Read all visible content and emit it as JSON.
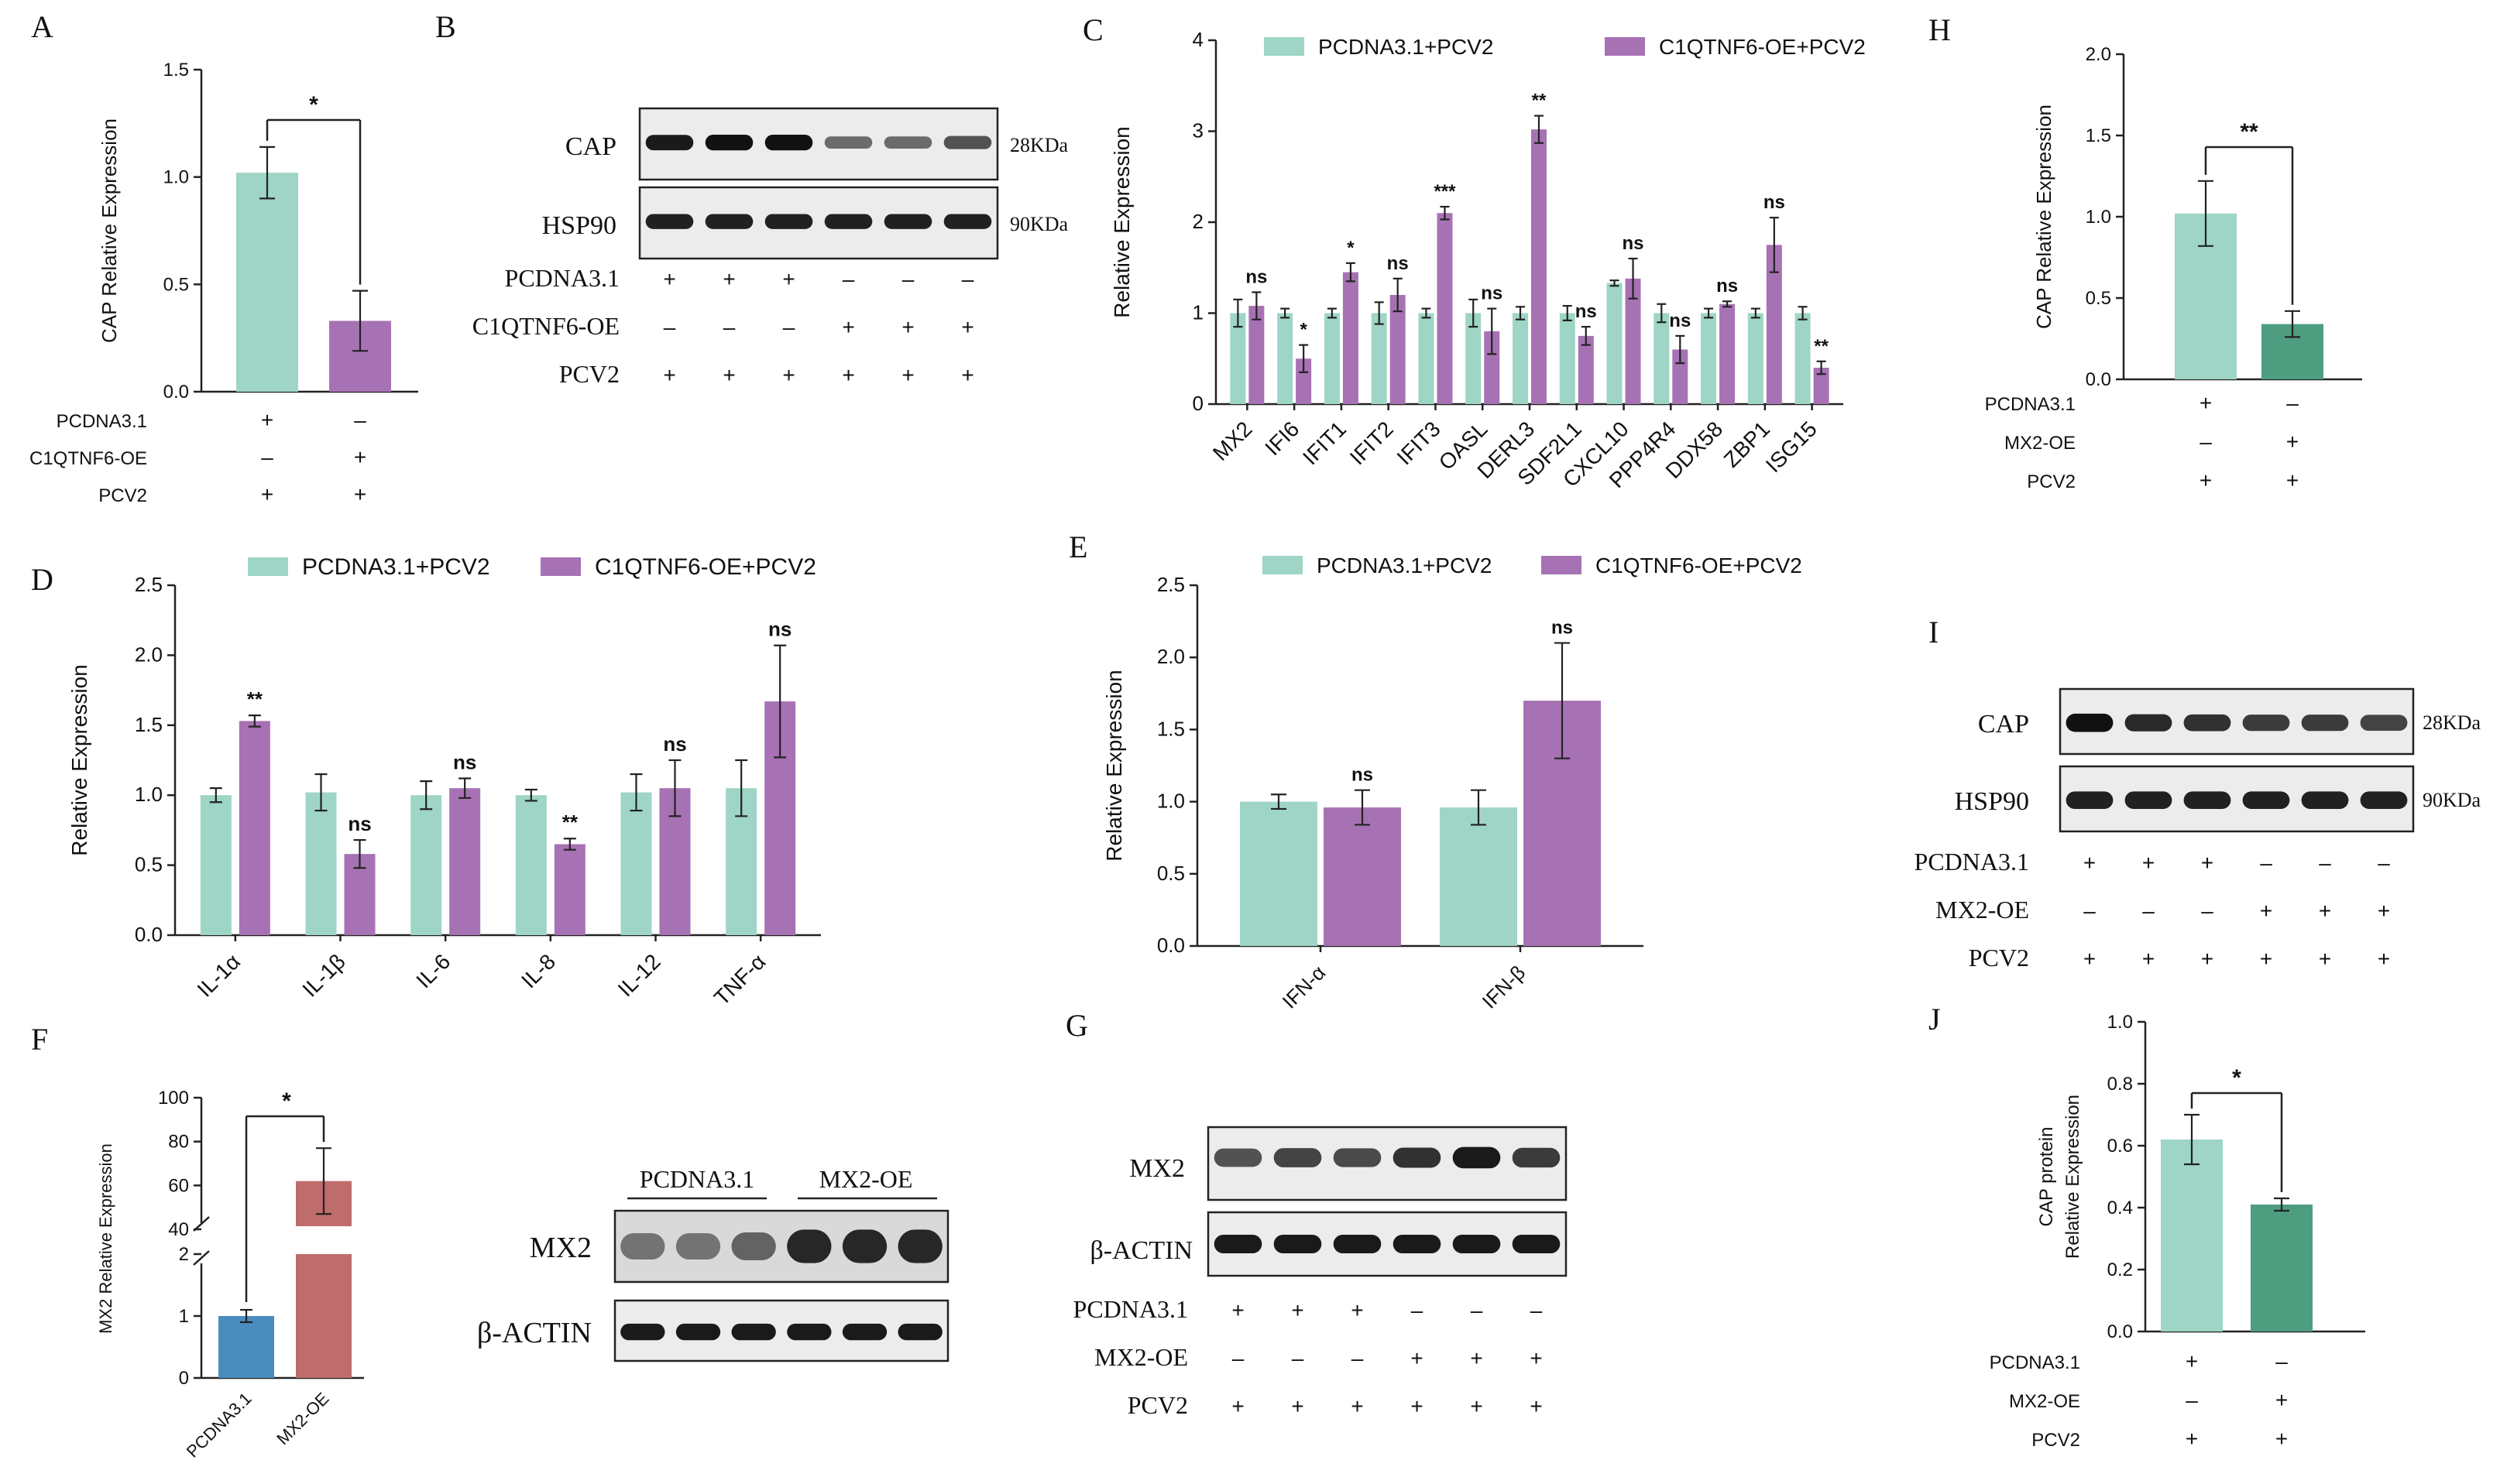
{
  "colors": {
    "teal": "#9ed5c6",
    "purple": "#a772b3",
    "green_dark": "#4f9d80",
    "blue": "#4b8cbf",
    "red": "#bf6c6c",
    "axis": "#222222",
    "band": "#111111"
  },
  "treatment_signs": {
    "plus": "+",
    "minus": "–"
  },
  "panel_letters": {
    "A": "A",
    "B": "B",
    "C": "C",
    "D": "D",
    "E": "E",
    "F": "F",
    "G": "G",
    "H": "H",
    "I": "I",
    "J": "J"
  },
  "chart_data": [
    {
      "panel": "A",
      "type": "bar",
      "ylabel": "CAP Relative Expression",
      "ylim": [
        0,
        1.5
      ],
      "yticks": [
        "0.0",
        "0.5",
        "1.0",
        "1.5"
      ],
      "groups": [
        "PCDNA3.1",
        "C1QTNF6-OE"
      ],
      "values": [
        1.02,
        0.33
      ],
      "errors": [
        0.12,
        0.14
      ],
      "significance": "*",
      "treatments": [
        {
          "label": "PCDNA3.1",
          "signs": [
            "+",
            "–"
          ]
        },
        {
          "label": "C1QTNF6-OE",
          "signs": [
            "–",
            "+"
          ]
        },
        {
          "label": "PCV2",
          "signs": [
            "+",
            "+"
          ]
        }
      ]
    },
    {
      "panel": "C",
      "type": "bar",
      "ylabel": "Relative Expression",
      "ylim": [
        0,
        4
      ],
      "yticks": [
        "0",
        "1",
        "2",
        "3",
        "4"
      ],
      "legend": [
        "PCDNA3.1+PCV2",
        "C1QTNF6-OE+PCV2"
      ],
      "categories": [
        "MX2",
        "IFI6",
        "IFIT1",
        "IFIT2",
        "IFIT3",
        "OASL",
        "DERL3",
        "SDF2L1",
        "CXCL10",
        "PPP4R4",
        "DDX58",
        "ZBP1",
        "ISG15"
      ],
      "series": [
        {
          "name": "PCDNA3.1+PCV2",
          "values": [
            1.0,
            1.0,
            1.0,
            1.0,
            1.0,
            1.0,
            1.0,
            1.0,
            1.33,
            1.0,
            1.0,
            1.0,
            1.0
          ],
          "errors": [
            0.15,
            0.05,
            0.05,
            0.12,
            0.05,
            0.15,
            0.07,
            0.08,
            0.03,
            0.1,
            0.05,
            0.05,
            0.07
          ]
        },
        {
          "name": "C1QTNF6-OE+PCV2",
          "values": [
            1.08,
            0.5,
            1.45,
            1.2,
            2.1,
            0.8,
            3.02,
            0.75,
            1.38,
            0.6,
            1.1,
            1.75,
            0.4
          ]
        }
      ],
      "errors2": [
        0.15,
        0.15,
        0.1,
        0.18,
        0.07,
        0.25,
        0.15,
        0.1,
        0.22,
        0.15,
        0.03,
        0.3,
        0.07
      ],
      "significance": [
        "ns",
        "*",
        "*",
        "ns",
        "***",
        "ns",
        "**",
        "ns",
        "ns",
        "ns",
        "ns",
        "ns",
        "**"
      ]
    },
    {
      "panel": "D",
      "type": "bar",
      "ylabel": "Relative Expression",
      "ylim": [
        0,
        2.5
      ],
      "yticks": [
        "0.0",
        "0.5",
        "1.0",
        "1.5",
        "2.0",
        "2.5"
      ],
      "legend": [
        "PCDNA3.1+PCV2",
        "C1QTNF6-OE+PCV2"
      ],
      "categories": [
        "IL-1α",
        "IL-1β",
        "IL-6",
        "IL-8",
        "IL-12",
        "TNF-α"
      ],
      "series": [
        {
          "name": "PCDNA3.1+PCV2",
          "values": [
            1.0,
            1.02,
            1.0,
            1.0,
            1.02,
            1.05
          ],
          "errors": [
            0.05,
            0.13,
            0.1,
            0.04,
            0.13,
            0.2
          ]
        },
        {
          "name": "C1QTNF6-OE+PCV2",
          "values": [
            1.53,
            0.58,
            1.05,
            0.65,
            1.05,
            1.67
          ],
          "errors": [
            0.04,
            0.1,
            0.07,
            0.04,
            0.2,
            0.4
          ]
        }
      ],
      "significance": [
        "**",
        "ns",
        "ns",
        "**",
        "ns",
        "ns"
      ]
    },
    {
      "panel": "E",
      "type": "bar",
      "ylabel": "Relative Expression",
      "ylim": [
        0,
        2.5
      ],
      "yticks": [
        "0.0",
        "0.5",
        "1.0",
        "1.5",
        "2.0",
        "2.5"
      ],
      "legend": [
        "PCDNA3.1+PCV2",
        "C1QTNF6-OE+PCV2"
      ],
      "categories": [
        "IFN-α",
        "IFN-β"
      ],
      "series": [
        {
          "name": "PCDNA3.1+PCV2",
          "values": [
            1.0,
            0.96
          ],
          "errors": [
            0.05,
            0.12
          ]
        },
        {
          "name": "C1QTNF6-OE+PCV2",
          "values": [
            0.96,
            1.7
          ],
          "errors": [
            0.12,
            0.4
          ]
        }
      ],
      "significance": [
        "ns",
        "ns"
      ]
    },
    {
      "panel": "F",
      "type": "bar",
      "ylabel": "MX2 Relative Expression",
      "broken_axis": {
        "lower": [
          0,
          2
        ],
        "upper": [
          40,
          100
        ]
      },
      "yticks_lower": [
        "0",
        "1",
        "2"
      ],
      "yticks_upper": [
        "40",
        "60",
        "80",
        "100"
      ],
      "categories": [
        "PCDNA3.1",
        "MX2-OE"
      ],
      "values": [
        1.0,
        62
      ],
      "errors": [
        0.1,
        15
      ],
      "significance": "*"
    },
    {
      "panel": "H",
      "type": "bar",
      "ylabel": "CAP Relative Expression",
      "ylim": [
        0,
        2.0
      ],
      "yticks": [
        "0.0",
        "0.5",
        "1.0",
        "1.5",
        "2.0"
      ],
      "groups": [
        "PCDNA3.1",
        "MX2-OE"
      ],
      "values": [
        1.02,
        0.34
      ],
      "errors": [
        0.2,
        0.08
      ],
      "significance": "**",
      "treatments": [
        {
          "label": "PCDNA3.1",
          "signs": [
            "+",
            "–"
          ]
        },
        {
          "label": "MX2-OE",
          "signs": [
            "–",
            "+"
          ]
        },
        {
          "label": "PCV2",
          "signs": [
            "+",
            "+"
          ]
        }
      ]
    },
    {
      "panel": "J",
      "type": "bar",
      "ylabel": [
        "CAP protein",
        "Relative Expression"
      ],
      "ylim": [
        0,
        1.0
      ],
      "yticks": [
        "0.0",
        "0.2",
        "0.4",
        "0.6",
        "0.8",
        "1.0"
      ],
      "groups": [
        "PCDNA3.1",
        "MX2-OE"
      ],
      "values": [
        0.62,
        0.41
      ],
      "errors": [
        0.08,
        0.02
      ],
      "significance": "*",
      "treatments": [
        {
          "label": "PCDNA3.1",
          "signs": [
            "+",
            "–"
          ]
        },
        {
          "label": "MX2-OE",
          "signs": [
            "–",
            "+"
          ]
        },
        {
          "label": "PCV2",
          "signs": [
            "+",
            "+"
          ]
        }
      ]
    }
  ],
  "blots": {
    "B": {
      "rows": [
        {
          "label": "CAP",
          "size": "28KDa",
          "intensities": [
            0.95,
            1.0,
            1.0,
            0.45,
            0.45,
            0.6
          ]
        },
        {
          "label": "HSP90",
          "size": "90KDa",
          "intensities": [
            0.9,
            0.9,
            0.9,
            0.9,
            0.9,
            0.9
          ]
        }
      ],
      "treatments": [
        {
          "label": "PCDNA3.1",
          "signs": [
            "+",
            "+",
            "+",
            "–",
            "–",
            "–"
          ]
        },
        {
          "label": "C1QTNF6-OE",
          "signs": [
            "–",
            "–",
            "–",
            "+",
            "+",
            "+"
          ]
        },
        {
          "label": "PCV2",
          "signs": [
            "+",
            "+",
            "+",
            "+",
            "+",
            "+"
          ]
        }
      ]
    },
    "F": {
      "groups": [
        "PCDNA3.1",
        "MX2-OE"
      ],
      "rows": [
        {
          "label": "MX2",
          "intensities": [
            0.35,
            0.35,
            0.45,
            0.85,
            0.85,
            0.85
          ]
        },
        {
          "label": "β-ACTIN",
          "intensities": [
            0.95,
            0.95,
            0.95,
            0.95,
            0.95,
            0.95
          ]
        }
      ]
    },
    "G": {
      "rows": [
        {
          "label": "MX2",
          "intensities": [
            0.6,
            0.7,
            0.65,
            0.8,
            0.95,
            0.75
          ]
        },
        {
          "label": "β-ACTIN",
          "intensities": [
            0.95,
            0.95,
            0.95,
            0.95,
            0.95,
            0.95
          ]
        }
      ],
      "treatments": [
        {
          "label": "PCDNA3.1",
          "signs": [
            "+",
            "+",
            "+",
            "–",
            "–",
            "–"
          ]
        },
        {
          "label": "MX2-OE",
          "signs": [
            "–",
            "–",
            "–",
            "+",
            "+",
            "+"
          ]
        },
        {
          "label": "PCV2",
          "signs": [
            "+",
            "+",
            "+",
            "+",
            "+",
            "+"
          ]
        }
      ]
    },
    "I": {
      "rows": [
        {
          "label": "CAP",
          "size": "28KDa",
          "intensities": [
            1.0,
            0.85,
            0.8,
            0.75,
            0.75,
            0.7
          ]
        },
        {
          "label": "HSP90",
          "size": "90KDa",
          "intensities": [
            0.9,
            0.9,
            0.9,
            0.9,
            0.9,
            0.9
          ]
        }
      ],
      "treatments": [
        {
          "label": "PCDNA3.1",
          "signs": [
            "+",
            "+",
            "+",
            "–",
            "–",
            "–"
          ]
        },
        {
          "label": "MX2-OE",
          "signs": [
            "–",
            "–",
            "–",
            "+",
            "+",
            "+"
          ]
        },
        {
          "label": "PCV2",
          "signs": [
            "+",
            "+",
            "+",
            "+",
            "+",
            "+"
          ]
        }
      ]
    }
  }
}
